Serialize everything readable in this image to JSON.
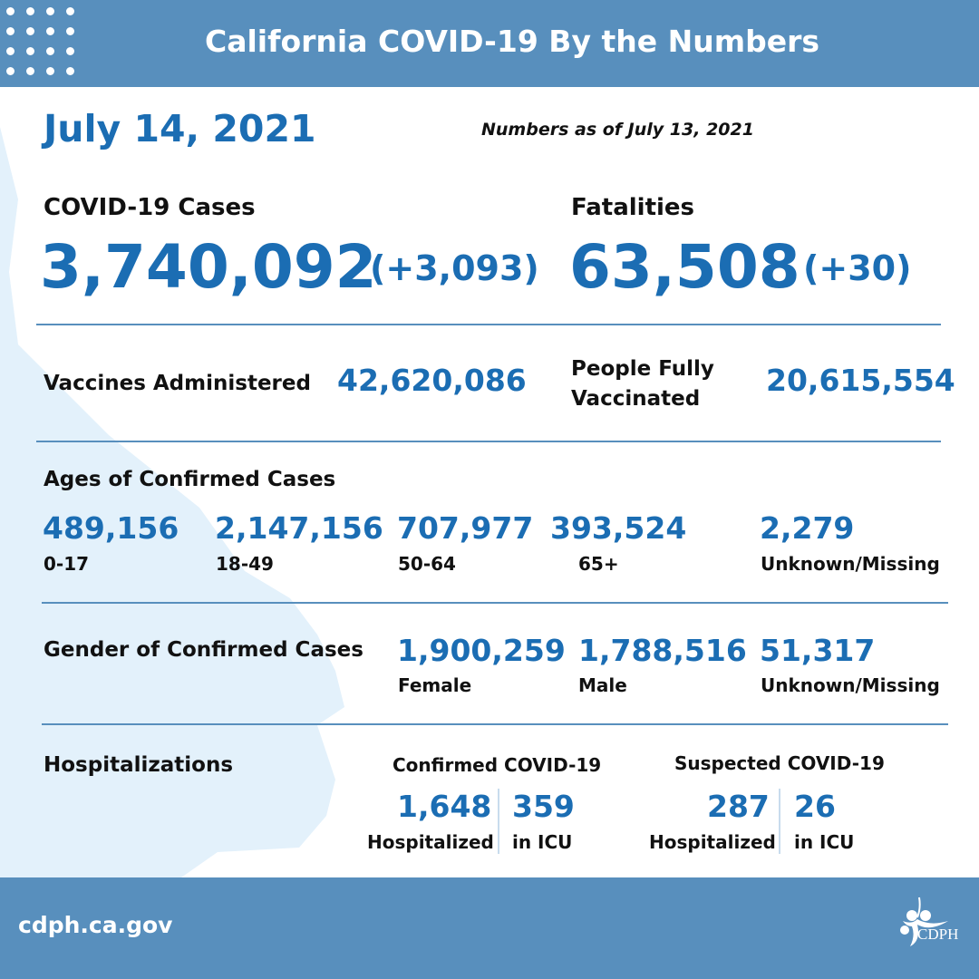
{
  "header": {
    "title": "California COVID-19 By the Numbers"
  },
  "date": "July 14, 2021",
  "as_of": "Numbers as of July 13, 2021",
  "cases": {
    "label": "COVID-19 Cases",
    "total": "3,740,092",
    "change": "(+3,093)"
  },
  "fatalities": {
    "label": "Fatalities",
    "total": "63,508",
    "change": "(+30)"
  },
  "vaccines": {
    "label": "Vaccines Administered",
    "value": "42,620,086"
  },
  "fully_vaccinated": {
    "label_line1": "People Fully",
    "label_line2": "Vaccinated",
    "value": "20,615,554"
  },
  "ages": {
    "label": "Ages of Confirmed Cases",
    "groups": [
      {
        "value": "489,156",
        "label": "0-17"
      },
      {
        "value": "2,147,156",
        "label": "18-49"
      },
      {
        "value": "707,977",
        "label": "50-64"
      },
      {
        "value": "393,524",
        "label": "65+"
      },
      {
        "value": "2,279",
        "label": "Unknown/Missing"
      }
    ]
  },
  "gender": {
    "label": "Gender of Confirmed Cases",
    "groups": [
      {
        "value": "1,900,259",
        "label": "Female"
      },
      {
        "value": "1,788,516",
        "label": "Male"
      },
      {
        "value": "51,317",
        "label": "Unknown/Missing"
      }
    ]
  },
  "hospitalizations": {
    "label": "Hospitalizations",
    "confirmed": {
      "title": "Confirmed COVID-19",
      "hospitalized": "1,648",
      "hospitalized_label": "Hospitalized",
      "icu": "359",
      "icu_label": "in ICU"
    },
    "suspected": {
      "title": "Suspected COVID-19",
      "hospitalized": "287",
      "hospitalized_label": "Hospitalized",
      "icu": "26",
      "icu_label": "in ICU"
    }
  },
  "footer": {
    "url": "cdph.ca.gov",
    "logo_text": "CDPH"
  },
  "colors": {
    "header": "#588fbd",
    "accent": "#1b6db3",
    "map": "#e3f1fb"
  }
}
